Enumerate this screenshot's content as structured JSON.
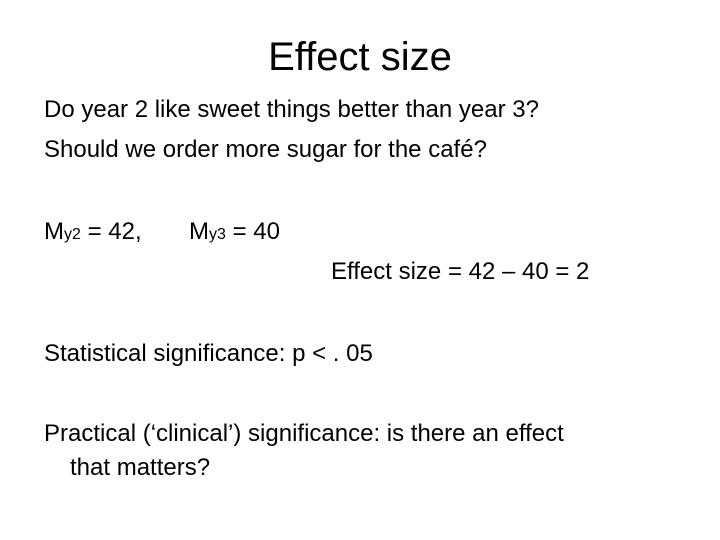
{
  "title": "Effect size",
  "lines": [
    "Do year 2 like sweet things better than year 3?",
    "Should we order more sugar for the café?"
  ],
  "means": [
    {
      "symbol": "M",
      "subscript": "y2",
      "rest": "= 42,"
    },
    {
      "symbol": "M",
      "subscript": "y3",
      "rest": "= 40"
    }
  ],
  "effect_size": "Effect size = 42 – 40 = 2",
  "statistical": "Statistical significance: p < . 05",
  "practical": [
    "Practical (‘clinical’) significance: is there an effect",
    "that matters?"
  ]
}
